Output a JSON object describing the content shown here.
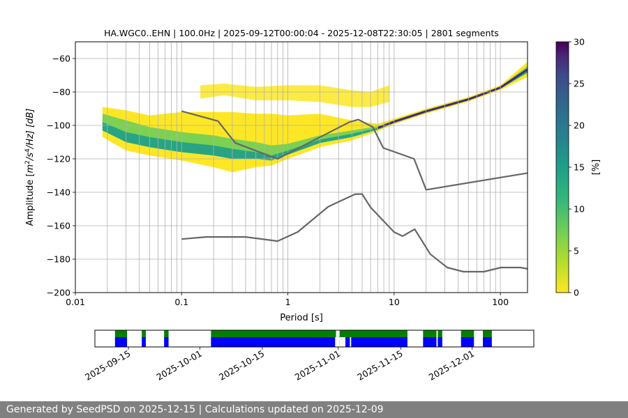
{
  "chart_data": [
    {
      "type": "heatmap",
      "title": "HA.WGC0..EHN | 100.0Hz | 2025-09-12T00:00:04 - 2025-12-08T22:30:05 | 2801 segments",
      "xlabel": "Period [s]",
      "ylabel_parts": [
        "Amplitude [",
        "m",
        "2",
        "/",
        "s",
        "4",
        "/Hz] [dB]"
      ],
      "xscale": "log",
      "xlim": [
        0.01,
        180
      ],
      "ylim": [
        -200,
        -50
      ],
      "x_ticks": [
        {
          "v": 0.01,
          "label": "0.01"
        },
        {
          "v": 0.1,
          "label": "0.1"
        },
        {
          "v": 1,
          "label": "1"
        },
        {
          "v": 10,
          "label": "10"
        },
        {
          "v": 100,
          "label": "100"
        }
      ],
      "y_ticks": [
        {
          "v": -60,
          "label": "−60"
        },
        {
          "v": -80,
          "label": "−80"
        },
        {
          "v": -100,
          "label": "−100"
        },
        {
          "v": -120,
          "label": "−120"
        },
        {
          "v": -140,
          "label": "−140"
        },
        {
          "v": -160,
          "label": "−160"
        },
        {
          "v": -180,
          "label": "−180"
        },
        {
          "v": -200,
          "label": "−200"
        }
      ],
      "grid_periods": [
        0.02,
        0.03,
        0.04,
        0.05,
        0.06,
        0.07,
        0.08,
        0.09,
        0.1,
        0.2,
        0.3,
        0.4,
        0.5,
        0.6,
        0.7,
        0.8,
        0.9,
        1,
        2,
        3,
        4,
        5,
        6,
        7,
        8,
        9,
        10,
        20,
        30,
        40,
        50,
        60,
        70,
        80,
        90,
        100
      ],
      "grid_amplitudes": [
        -60,
        -80,
        -100,
        -120,
        -140,
        -160,
        -180
      ],
      "colorbar": {
        "label": "[%]",
        "range": [
          0,
          30
        ],
        "ticks": [
          {
            "v": 0,
            "label": "0"
          },
          {
            "v": 5,
            "label": "5"
          },
          {
            "v": 10,
            "label": "10"
          },
          {
            "v": 15,
            "label": "15"
          },
          {
            "v": 20,
            "label": "20"
          },
          {
            "v": 25,
            "label": "25"
          },
          {
            "v": 30,
            "label": "30"
          }
        ],
        "colors": [
          "#fde725",
          "#b5de2b",
          "#6ece58",
          "#35b779",
          "#1f9e89",
          "#26828e",
          "#31688e",
          "#3e4989",
          "#482878",
          "#440154"
        ]
      },
      "series": [
        {
          "name": "high noise model",
          "color": "#666666",
          "points": [
            [
              0.1,
              -91.5
            ],
            [
              0.22,
              -97.4
            ],
            [
              0.32,
              -110.5
            ],
            [
              0.8,
              -120
            ],
            [
              3.8,
              -98
            ],
            [
              4.6,
              -96.5
            ],
            [
              6.3,
              -101
            ],
            [
              7.9,
              -113.5
            ],
            [
              15.4,
              -120
            ],
            [
              20,
              -138.5
            ],
            [
              180,
              -128.5
            ]
          ]
        },
        {
          "name": "low noise model",
          "color": "#666666",
          "points": [
            [
              0.1,
              -168
            ],
            [
              0.17,
              -166.7
            ],
            [
              0.4,
              -166.7
            ],
            [
              0.8,
              -169.2
            ],
            [
              1.24,
              -163.7
            ],
            [
              2.4,
              -148.6
            ],
            [
              4.3,
              -141.1
            ],
            [
              5,
              -141.1
            ],
            [
              6,
              -149
            ],
            [
              10,
              -163.8
            ],
            [
              12,
              -166.2
            ],
            [
              15.6,
              -162.1
            ],
            [
              21.9,
              -177
            ],
            [
              31.6,
              -185
            ],
            [
              45,
              -187.5
            ],
            [
              70,
              -187.5
            ],
            [
              101,
              -185
            ],
            [
              154,
              -185
            ],
            [
              180,
              -185.8
            ]
          ]
        }
      ],
      "density_bands": [
        {
          "name": "main band",
          "points": [
            [
              0.018,
              -89,
              -93,
              -98,
              -103,
              -107
            ],
            [
              0.03,
              -91,
              -97,
              -104,
              -110,
              -115
            ],
            [
              0.05,
              -94,
              -101,
              -107,
              -113,
              -118
            ],
            [
              0.1,
              -92,
              -104,
              -110,
              -116,
              -121
            ],
            [
              0.2,
              -92,
              -106,
              -112,
              -118,
              -125
            ],
            [
              0.3,
              -92,
              -108,
              -114,
              -120,
              -128
            ],
            [
              0.5,
              -93,
              -110,
              -116,
              -120,
              -125
            ],
            [
              0.7,
              -93,
              -112,
              -118,
              -121,
              -124
            ],
            [
              1,
              -94,
              -111,
              -115,
              -117.5,
              -120
            ],
            [
              2,
              -93,
              -106,
              -108.5,
              -110.5,
              -113
            ],
            [
              4,
              -97,
              -103,
              -105,
              -107,
              -109
            ],
            [
              7,
              -99,
              -100.5,
              -101.5,
              -102.5,
              -103.5
            ],
            [
              10,
              -96,
              -97,
              -97.8,
              -98.6,
              -99.3
            ],
            [
              20,
              -90,
              -90.8,
              -91.5,
              -92.3,
              -93
            ],
            [
              50,
              -83,
              -83.7,
              -84.4,
              -85.1,
              -85.8
            ],
            [
              100,
              -76,
              -76.7,
              -77.4,
              -78.1,
              -78.8
            ],
            [
              180,
              -62,
              -64.5,
              -66.5,
              -68.5,
              -71
            ]
          ]
        },
        {
          "name": "outlier band",
          "points": [
            [
              0.15,
              -76,
              -84
            ],
            [
              0.25,
              -75,
              -82
            ],
            [
              0.5,
              -77,
              -85
            ],
            [
              1,
              -76,
              -85
            ],
            [
              2,
              -76,
              -86
            ],
            [
              4,
              -79,
              -89
            ],
            [
              6,
              -80,
              -89
            ],
            [
              9,
              -76,
              -86
            ]
          ]
        }
      ]
    },
    {
      "type": "timeline",
      "x_ticks": [
        {
          "v": 3,
          "label": "2025-09-15"
        },
        {
          "v": 19,
          "label": "2025-10-01"
        },
        {
          "v": 33,
          "label": "2025-10-15"
        },
        {
          "v": 50,
          "label": "2025-11-01"
        },
        {
          "v": 64,
          "label": "2025-11-15"
        },
        {
          "v": 80,
          "label": "2025-12-01"
        }
      ],
      "xlim": [
        -4.5,
        93.8
      ],
      "top_color": "#008000",
      "bottom_color": "#0000ff",
      "coverage_segments": [
        {
          "start": 0,
          "end": 2.7
        },
        {
          "start": 6,
          "end": 6.9
        },
        {
          "start": 11,
          "end": 12
        },
        {
          "start": 21.5,
          "end": 49.5
        },
        {
          "start": 50.3,
          "end": 65.5
        },
        {
          "start": 69,
          "end": 72
        },
        {
          "start": 72.3,
          "end": 73.3
        },
        {
          "start": 77.5,
          "end": 80.4
        },
        {
          "start": 82.4,
          "end": 84.4
        }
      ],
      "bottom_gaps": [
        {
          "start": 49.3,
          "end": 49.5
        },
        {
          "start": 50.3,
          "end": 51.6
        },
        {
          "start": 52.6,
          "end": 52.9
        }
      ]
    }
  ],
  "footer": {
    "text": "Generated by SeedPSD on 2025-12-15 | Calculations updated on 2025-12-09"
  }
}
